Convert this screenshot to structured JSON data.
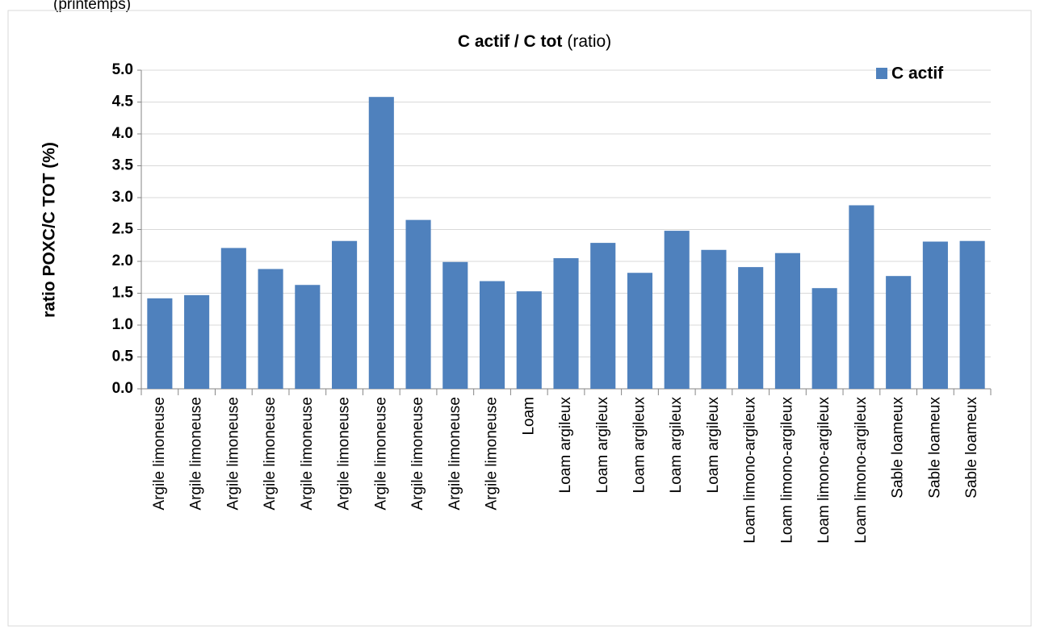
{
  "caption": "(printemps)",
  "chart_data": {
    "type": "bar",
    "title": "C actif / C tot",
    "title_note": "(ratio)",
    "y_label": "ratio POXC/C TOT  (%)",
    "categories": [
      "Argile limoneuse",
      "Argile limoneuse",
      "Argile limoneuse",
      "Argile limoneuse",
      "Argile limoneuse",
      "Argile limoneuse",
      "Argile limoneuse",
      "Argile limoneuse",
      "Argile limoneuse",
      "Argile limoneuse",
      "Loam",
      "Loam argileux",
      "Loam argileux",
      "Loam argileux",
      "Loam argileux",
      "Loam argileux",
      "Loam limono-argileux",
      "Loam limono-argileux",
      "Loam limono-argileux",
      "Loam limono-argileux",
      "Sable loameux",
      "Sable loameux",
      "Sable loameux"
    ],
    "series": [
      {
        "name": "C actif",
        "color": "#4f81bd",
        "values": [
          1.42,
          1.47,
          2.21,
          1.88,
          1.63,
          2.32,
          4.58,
          2.65,
          1.99,
          1.69,
          1.53,
          2.05,
          2.29,
          1.82,
          2.48,
          2.18,
          1.91,
          2.13,
          1.58,
          2.88,
          1.77,
          2.31,
          2.32
        ]
      }
    ],
    "ylim": [
      0,
      5
    ],
    "yticks": [
      {
        "value": 0,
        "label": "0.0"
      },
      0.5,
      {
        "value": 1,
        "label": "1.0"
      },
      1.5,
      {
        "value": 2,
        "label": "2.0"
      },
      2.5,
      {
        "value": 3,
        "label": "3.0"
      },
      3.5,
      {
        "value": 4,
        "label": "4.0"
      },
      4.5,
      {
        "value": 5,
        "label": "5.0"
      }
    ],
    "grid": true,
    "legend": "top-right"
  }
}
